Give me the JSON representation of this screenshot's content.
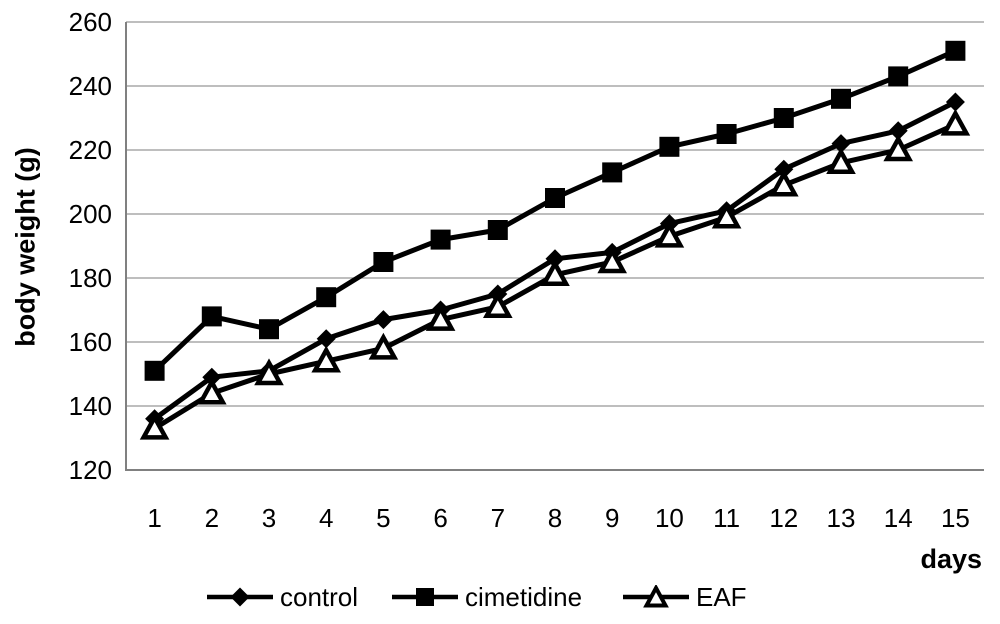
{
  "chart_data": {
    "type": "line",
    "title": "",
    "xlabel": "days",
    "ylabel": "body weight (g)",
    "categories": [
      "1",
      "2",
      "3",
      "4",
      "5",
      "6",
      "7",
      "8",
      "9",
      "10",
      "11",
      "12",
      "13",
      "14",
      "15"
    ],
    "ylim": [
      120,
      260
    ],
    "y_ticks": [
      260,
      240,
      220,
      200,
      180,
      160,
      140,
      120
    ],
    "grid": "horizontal-only",
    "legend_position": "bottom-center",
    "series": [
      {
        "name": "control",
        "marker": "filled-diamond",
        "color": "#000000",
        "values": [
          136,
          149,
          151,
          161,
          167,
          170,
          175,
          186,
          188,
          197,
          201,
          214,
          222,
          226,
          235
        ]
      },
      {
        "name": "cimetidine",
        "marker": "filled-square",
        "color": "#000000",
        "values": [
          151,
          168,
          164,
          174,
          185,
          192,
          195,
          205,
          213,
          221,
          225,
          230,
          236,
          243,
          251
        ]
      },
      {
        "name": "EAF",
        "marker": "open-triangle",
        "color": "#000000",
        "values": [
          133,
          144,
          150,
          154,
          158,
          167,
          171,
          181,
          185,
          193,
          199,
          209,
          216,
          220,
          228
        ]
      }
    ]
  },
  "colors": {
    "background": "#ffffff",
    "text": "#000000",
    "series_line": "#000000",
    "grid": "#969696",
    "axis": "#808080"
  }
}
